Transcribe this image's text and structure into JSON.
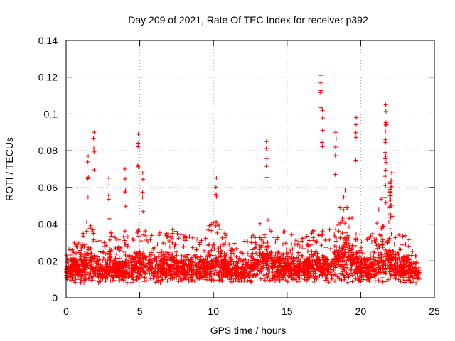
{
  "chart_data": {
    "type": "scatter",
    "title": "Day 209 of 2021, Rate Of TEC Index for receiver p392",
    "xlabel": "GPS time / hours",
    "ylabel": "ROTI / TECUs",
    "xlim": [
      0,
      25
    ],
    "ylim": [
      0,
      0.14
    ],
    "x_ticks": [
      0,
      5,
      10,
      15,
      20,
      25
    ],
    "y_ticks": [
      0,
      0.02,
      0.04,
      0.06,
      0.08,
      0.1,
      0.12,
      0.14
    ],
    "x_tick_labels": [
      "0",
      "5",
      "10",
      "15",
      "20",
      "25"
    ],
    "y_tick_labels": [
      "0",
      "0.02",
      "0.04",
      "0.06",
      "0.08",
      "0.1",
      "0.12",
      "0.14"
    ],
    "grid": true,
    "marker": "+",
    "marker_color": "#ff0000",
    "series": [
      {
        "name": "ROTI",
        "x": [
          0.0,
          0.5,
          1.0,
          1.5,
          2.0,
          2.5,
          3.0,
          3.5,
          4.0,
          4.5,
          5.0,
          5.5,
          6.0,
          6.5,
          7.0,
          7.5,
          8.0,
          8.5,
          9.0,
          9.5,
          10.0,
          10.5,
          11.0,
          11.5,
          12.0,
          12.5,
          13.0,
          13.5,
          14.0,
          14.5,
          15.0,
          15.5,
          16.0,
          16.5,
          17.0,
          17.5,
          18.0,
          18.5,
          19.0,
          19.5,
          20.0,
          20.5,
          21.0,
          21.5,
          22.0,
          22.5,
          23.0,
          23.5,
          24.0
        ],
        "y": [
          0.024,
          0.034,
          0.03,
          0.046,
          0.034,
          0.029,
          0.036,
          0.032,
          0.038,
          0.034,
          0.046,
          0.036,
          0.034,
          0.037,
          0.04,
          0.036,
          0.034,
          0.033,
          0.033,
          0.035,
          0.045,
          0.04,
          0.034,
          0.031,
          0.03,
          0.034,
          0.04,
          0.054,
          0.04,
          0.036,
          0.037,
          0.034,
          0.036,
          0.037,
          0.04,
          0.036,
          0.038,
          0.05,
          0.06,
          0.04,
          0.034,
          0.032,
          0.038,
          0.062,
          0.04,
          0.036,
          0.034,
          0.03,
          0.026
        ],
        "y_min": [
          0.01,
          0.008,
          0.008,
          0.008,
          0.008,
          0.008,
          0.008,
          0.008,
          0.008,
          0.008,
          0.008,
          0.008,
          0.008,
          0.008,
          0.008,
          0.008,
          0.008,
          0.008,
          0.008,
          0.008,
          0.008,
          0.008,
          0.008,
          0.008,
          0.008,
          0.008,
          0.008,
          0.008,
          0.008,
          0.008,
          0.008,
          0.008,
          0.008,
          0.008,
          0.008,
          0.008,
          0.008,
          0.008,
          0.008,
          0.008,
          0.008,
          0.008,
          0.008,
          0.008,
          0.008,
          0.008,
          0.008,
          0.008,
          0.008
        ]
      }
    ],
    "annotations_peaks": [
      {
        "x": 1.5,
        "y": 0.077
      },
      {
        "x": 1.9,
        "y": 0.09
      },
      {
        "x": 2.9,
        "y": 0.065
      },
      {
        "x": 4.0,
        "y": 0.07
      },
      {
        "x": 4.9,
        "y": 0.089
      },
      {
        "x": 5.2,
        "y": 0.068
      },
      {
        "x": 10.2,
        "y": 0.065
      },
      {
        "x": 13.6,
        "y": 0.085
      },
      {
        "x": 17.3,
        "y": 0.121
      },
      {
        "x": 17.4,
        "y": 0.102
      },
      {
        "x": 18.3,
        "y": 0.09
      },
      {
        "x": 19.7,
        "y": 0.098
      },
      {
        "x": 21.7,
        "y": 0.105
      },
      {
        "x": 21.7,
        "y": 0.094
      },
      {
        "x": 21.7,
        "y": 0.077
      },
      {
        "x": 22.0,
        "y": 0.06
      },
      {
        "x": 22.0,
        "y": 0.062
      },
      {
        "x": 22.0,
        "y": 0.063
      },
      {
        "x": 22.0,
        "y": 0.064
      },
      {
        "x": 22.1,
        "y": 0.068
      }
    ]
  }
}
